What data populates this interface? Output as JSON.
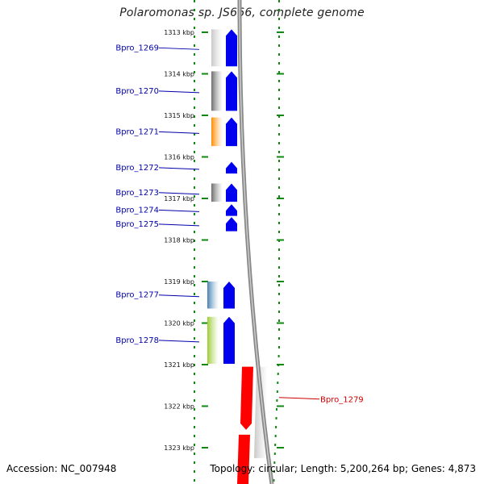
{
  "title": "Polaromonas sp. JS666, complete genome",
  "footer": {
    "accession": "Accession: NC_007948",
    "stats": "Topology: circular; Length: 5,200,264 bp; Genes: 4,873"
  },
  "colors": {
    "tick": "#118811",
    "gene_label": "#0000aa",
    "highlight_label": "#cc0000",
    "forward_gene": "#0000ee",
    "backbone": "#888888"
  },
  "ticks": [
    {
      "label": "1313 kbp",
      "kbp": 1313
    },
    {
      "label": "1314 kbp",
      "kbp": 1314
    },
    {
      "label": "1315 kbp",
      "kbp": 1315
    },
    {
      "label": "1316 kbp",
      "kbp": 1316
    },
    {
      "label": "1317 kbp",
      "kbp": 1317
    },
    {
      "label": "1318 kbp",
      "kbp": 1318
    },
    {
      "label": "1319 kbp",
      "kbp": 1319
    },
    {
      "label": "1320 kbp",
      "kbp": 1320
    },
    {
      "label": "1321 kbp",
      "kbp": 1321
    },
    {
      "label": "1322 kbp",
      "kbp": 1322
    },
    {
      "label": "1323 kbp",
      "kbp": 1323
    }
  ],
  "genes": [
    {
      "name": "Bpro_1269",
      "start_kbp": 1312.93,
      "end_kbp": 1313.82,
      "feature_color": "#c8c8c8",
      "highlight": false
    },
    {
      "name": "Bpro_1270",
      "start_kbp": 1313.94,
      "end_kbp": 1314.89,
      "feature_color": "#6e6e6e",
      "highlight": false
    },
    {
      "name": "Bpro_1271",
      "start_kbp": 1315.05,
      "end_kbp": 1315.74,
      "feature_color": "#ff8c00",
      "highlight": false
    },
    {
      "name": "Bpro_1272",
      "start_kbp": 1316.12,
      "end_kbp": 1316.4,
      "feature_color": "",
      "highlight": false
    },
    {
      "name": "Bpro_1273",
      "start_kbp": 1316.64,
      "end_kbp": 1317.08,
      "feature_color": "#6e6e6e",
      "highlight": false
    },
    {
      "name": "Bpro_1274",
      "start_kbp": 1317.14,
      "end_kbp": 1317.42,
      "feature_color": "",
      "highlight": false
    },
    {
      "name": "Bpro_1275",
      "start_kbp": 1317.45,
      "end_kbp": 1317.79,
      "feature_color": "",
      "highlight": false
    },
    {
      "name": "Bpro_1277",
      "start_kbp": 1319.0,
      "end_kbp": 1319.65,
      "feature_color": "#4682b4",
      "highlight": false
    },
    {
      "name": "Bpro_1278",
      "start_kbp": 1319.85,
      "end_kbp": 1320.98,
      "feature_color": "#9acd32",
      "highlight": false
    },
    {
      "name": "Bpro_1279",
      "start_kbp": 1321.05,
      "end_kbp": 1322.57,
      "feature_color": "#c8c8c8",
      "highlight": true
    }
  ]
}
